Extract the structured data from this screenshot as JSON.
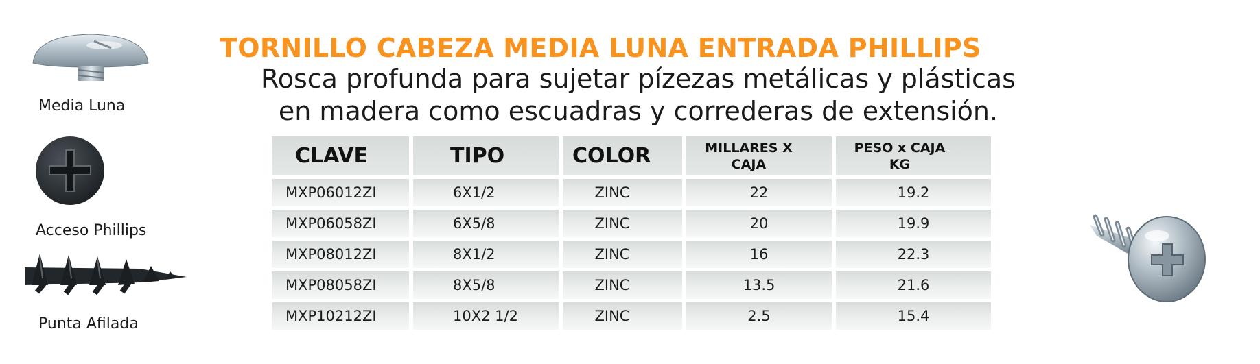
{
  "title": "TORNILLO CABEZA MEDIA LUNA ENTRADA PHILLIPS",
  "subtitle": {
    "line1": "Rosca profunda para sujetar pízezas metálicas y plásticas",
    "line2": "en madera como escuadras y correderas de extensión."
  },
  "features": [
    {
      "label": "Media Luna",
      "icon": "pan-head-screw-icon"
    },
    {
      "label": "Acceso Phillips",
      "icon": "phillips-head-icon"
    },
    {
      "label": "Punta Afilada",
      "icon": "sharp-point-thread-icon"
    }
  ],
  "table": {
    "headers": {
      "clave": "CLAVE",
      "tipo": "TIPO",
      "color": "COLOR",
      "millares_line1": "MILLARES X",
      "millares_line2": "CAJA",
      "peso_line1": "PESO x CAJA",
      "peso_line2": "KG"
    },
    "rows": [
      {
        "clave": "MXP06012ZI",
        "tipo": "6X1/2",
        "color": "ZINC",
        "millares": "22",
        "peso": "19.2"
      },
      {
        "clave": "MXP06058ZI",
        "tipo": "6X5/8",
        "color": "ZINC",
        "millares": "20",
        "peso": "19.9"
      },
      {
        "clave": "MXP08012ZI",
        "tipo": "8X1/2",
        "color": "ZINC",
        "millares": "16",
        "peso": "22.3"
      },
      {
        "clave": "MXP08058ZI",
        "tipo": "8X5/8",
        "color": "ZINC",
        "millares": "13.5",
        "peso": "21.6"
      },
      {
        "clave": "MXP10212ZI",
        "tipo": "10X2 1/2",
        "color": "ZINC",
        "millares": "2.5",
        "peso": "15.4"
      }
    ]
  },
  "product_image": "zinc-pan-head-screw-icon",
  "colors": {
    "title_orange": "#f7931e",
    "cell_gray": "#d7dcdb",
    "zinc_silver": "#b8c4cc",
    "black_screw": "#1f2326"
  }
}
